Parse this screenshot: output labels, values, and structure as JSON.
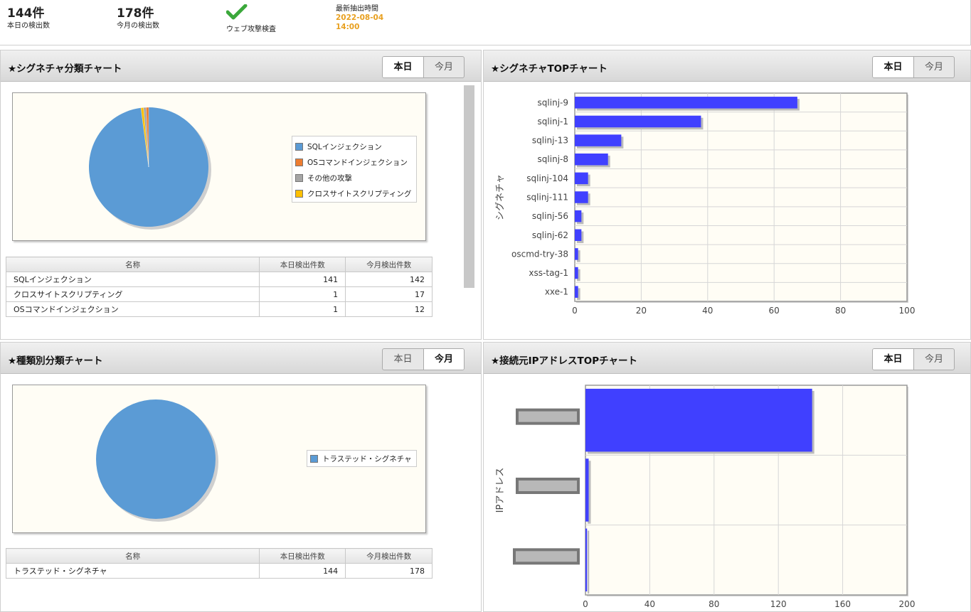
{
  "stats": {
    "today_count": "144件",
    "today_label": "本日の検出数",
    "month_count": "178件",
    "month_label": "今月の検出数",
    "check_label": "ウェブ攻撃検査",
    "check_icon": "checkmark-icon",
    "time_label": "最新抽出時間",
    "time_date": "2022-08-04",
    "time_clock": "14:00"
  },
  "tabs": {
    "today": "本日",
    "month": "今月"
  },
  "colors": {
    "pie_blue": "#5b9bd5",
    "pie_orange": "#ed7d31",
    "pie_gray": "#a5a5a5",
    "pie_yellow": "#ffc000",
    "bar_blue": "#4040ff",
    "accent_orange": "#e8a020"
  },
  "sig_panel": {
    "title": "★シグネチャ分類チャート",
    "active_tab": "today",
    "legend": [
      "SQLインジェクション",
      "OSコマンドインジェクション",
      "その他の攻撃",
      "クロスサイトスクリプティング"
    ],
    "table_headers": [
      "名称",
      "本日検出件数",
      "今月検出件数"
    ],
    "rows": [
      {
        "name": "SQLインジェクション",
        "today": "141",
        "month": "142"
      },
      {
        "name": "クロスサイトスクリプティング",
        "today": "1",
        "month": "17"
      },
      {
        "name": "OSコマンドインジェクション",
        "today": "1",
        "month": "12"
      }
    ]
  },
  "top_panel": {
    "title": "★シグネチャTOPチャート",
    "active_tab": "today"
  },
  "type_panel": {
    "title": "★種類別分類チャート",
    "active_tab": "month",
    "legend": [
      "トラステッド・シグネチャ"
    ],
    "table_headers": [
      "名称",
      "本日検出件数",
      "今月検出件数"
    ],
    "rows": [
      {
        "name": "トラステッド・シグネチャ",
        "today": "144",
        "month": "178"
      }
    ]
  },
  "ip_panel": {
    "title": "★接続元IPアドレスTOPチャート",
    "active_tab": "today"
  },
  "chart_data": [
    {
      "type": "pie",
      "categories": [
        "SQLインジェクション",
        "OSコマンドインジェクション",
        "その他の攻撃",
        "クロスサイトスクリプティング"
      ],
      "values": [
        141,
        1,
        1,
        1
      ]
    },
    {
      "type": "bar",
      "orientation": "horizontal",
      "categories": [
        "sqlinj-9",
        "sqlinj-1",
        "sqlinj-13",
        "sqlinj-8",
        "sqlinj-104",
        "sqlinj-111",
        "sqlinj-56",
        "sqlinj-62",
        "oscmd-try-38",
        "xss-tag-1",
        "xxe-1"
      ],
      "values": [
        67,
        38,
        14,
        10,
        4,
        4,
        2,
        2,
        1,
        1,
        1
      ],
      "xlim": [
        0,
        100
      ],
      "xticks": [
        "0",
        "20",
        "40",
        "60",
        "80",
        "100"
      ],
      "ylabel": "シグネチャ",
      "grid": true
    },
    {
      "type": "pie",
      "categories": [
        "トラステッド・シグネチャ"
      ],
      "values": [
        178
      ]
    },
    {
      "type": "bar",
      "orientation": "horizontal",
      "categories": [
        "",
        "",
        ""
      ],
      "values": [
        141,
        2,
        1
      ],
      "xlim": [
        0,
        200
      ],
      "xticks": [
        "0",
        "40",
        "80",
        "120",
        "160",
        "200"
      ],
      "ylabel": "IPアドレス",
      "grid": true
    }
  ]
}
